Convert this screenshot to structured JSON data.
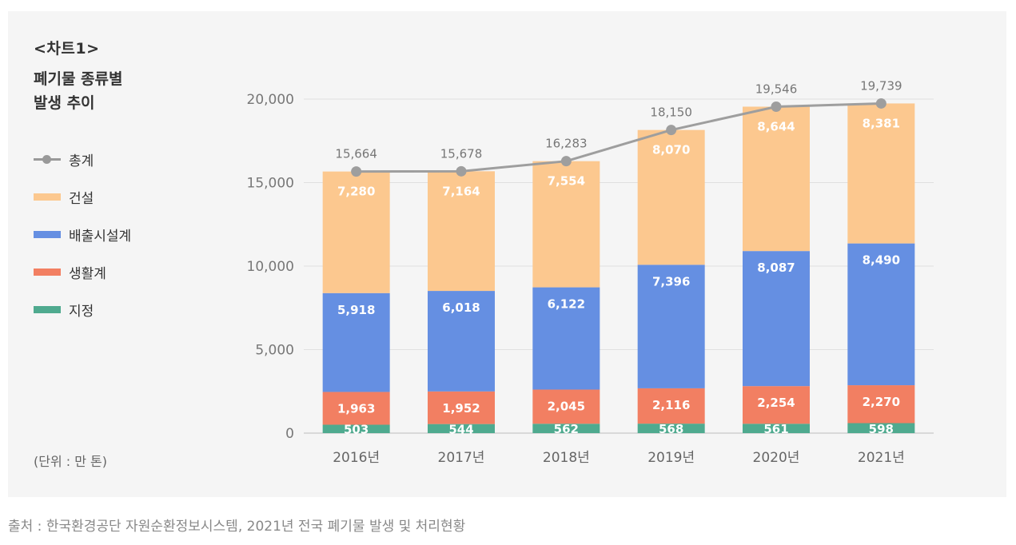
{
  "header": {
    "chart_label": "<차트1>",
    "title_line1": "폐기물 종류별",
    "title_line2": "발생 추이"
  },
  "legend": [
    {
      "name": "총계",
      "color": "#9e9e9e",
      "kind": "line"
    },
    {
      "name": "건설",
      "color": "#fcc88f",
      "kind": "box"
    },
    {
      "name": "배출시설계",
      "color": "#658fe2",
      "kind": "box"
    },
    {
      "name": "생활계",
      "color": "#f27f62",
      "kind": "box"
    },
    {
      "name": "지정",
      "color": "#4faa8f",
      "kind": "box"
    }
  ],
  "unit": "(단위 : 만 톤)",
  "source": "출처 : 한국환경공단 자원순환정보시스템, 2021년 전국 폐기물 발생 및 처리현황",
  "chart_data": {
    "type": "bar",
    "stacked": true,
    "title": "폐기물 종류별 발생 추이",
    "categories": [
      "2016년",
      "2017년",
      "2018년",
      "2019년",
      "2020년",
      "2021년"
    ],
    "series": [
      {
        "name": "지정",
        "color": "#4faa8f",
        "values": [
          503,
          544,
          562,
          568,
          561,
          598
        ]
      },
      {
        "name": "생활계",
        "color": "#f27f62",
        "values": [
          1963,
          1952,
          2045,
          2116,
          2254,
          2270
        ]
      },
      {
        "name": "배출시설계",
        "color": "#658fe2",
        "values": [
          5918,
          6018,
          6122,
          7396,
          8087,
          8490
        ]
      },
      {
        "name": "건설",
        "color": "#fcc88f",
        "values": [
          7280,
          7164,
          7554,
          8070,
          8644,
          8381
        ]
      }
    ],
    "total": {
      "name": "총계",
      "color": "#9e9e9e",
      "values": [
        15664,
        15678,
        16283,
        18150,
        19546,
        19739
      ]
    },
    "yticks": [
      0,
      5000,
      10000,
      15000,
      20000
    ],
    "ytick_labels": [
      "0",
      "5,000",
      "10,000",
      "15,000",
      "20,000"
    ],
    "ylim": [
      0,
      20000
    ],
    "xlabel": "",
    "ylabel": ""
  }
}
